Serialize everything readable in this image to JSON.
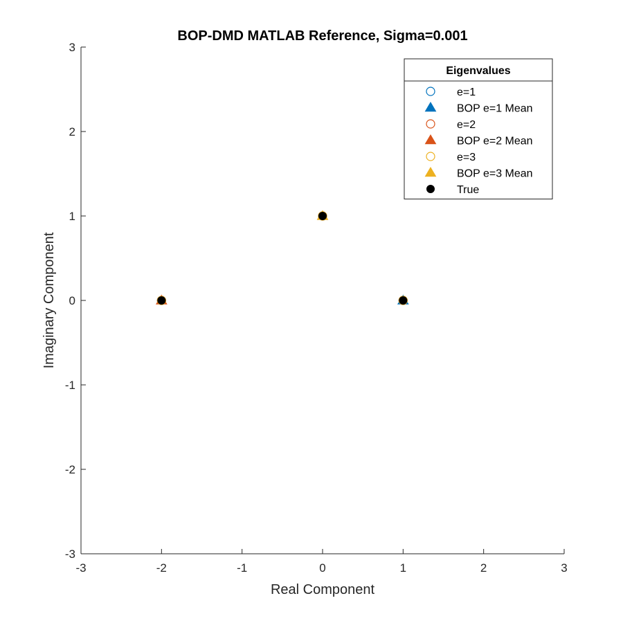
{
  "chart_data": {
    "type": "scatter",
    "title": "BOP-DMD MATLAB Reference, Sigma=0.001",
    "xlabel": "Real Component",
    "ylabel": "Imaginary Component",
    "xlim": [
      -3,
      3
    ],
    "ylim": [
      -3,
      3
    ],
    "xticks": [
      -3,
      -2,
      -1,
      0,
      1,
      2,
      3
    ],
    "yticks": [
      -3,
      -2,
      -1,
      0,
      1,
      2,
      3
    ],
    "xtick_labels": [
      "-3",
      "-2",
      "-1",
      "0",
      "1",
      "2",
      "3"
    ],
    "ytick_labels": [
      "-3",
      "-2",
      "-1",
      "0",
      "1",
      "2",
      "3"
    ],
    "grid": false,
    "legend": {
      "title": "Eigenvalues",
      "placement": "top-right"
    },
    "series": [
      {
        "name": "e=1",
        "marker": "circle-open",
        "color": "#0072BD",
        "points": [
          [
            1.0,
            0.0
          ],
          [
            -2.0,
            0.0
          ],
          [
            0.0,
            1.0
          ]
        ]
      },
      {
        "name": "BOP e=1 Mean",
        "marker": "triangle-filled",
        "color": "#0072BD",
        "points": [
          [
            1.0,
            0.0
          ]
        ]
      },
      {
        "name": "e=2",
        "marker": "circle-open",
        "color": "#D95319",
        "points": [
          [
            1.0,
            0.0
          ],
          [
            -2.0,
            0.0
          ],
          [
            0.0,
            1.0
          ]
        ]
      },
      {
        "name": "BOP e=2 Mean",
        "marker": "triangle-filled",
        "color": "#D95319",
        "points": [
          [
            -2.0,
            0.0
          ]
        ]
      },
      {
        "name": "e=3",
        "marker": "circle-open",
        "color": "#EDB120",
        "points": [
          [
            1.0,
            0.0
          ],
          [
            -2.0,
            0.0
          ],
          [
            0.0,
            1.0
          ]
        ]
      },
      {
        "name": "BOP e=3 Mean",
        "marker": "triangle-filled",
        "color": "#EDB120",
        "points": [
          [
            0.0,
            1.0
          ]
        ]
      },
      {
        "name": "True",
        "marker": "circle-filled",
        "color": "#000000",
        "points": [
          [
            1.0,
            0.0
          ],
          [
            -2.0,
            0.0
          ],
          [
            0.0,
            1.0
          ]
        ]
      }
    ]
  }
}
